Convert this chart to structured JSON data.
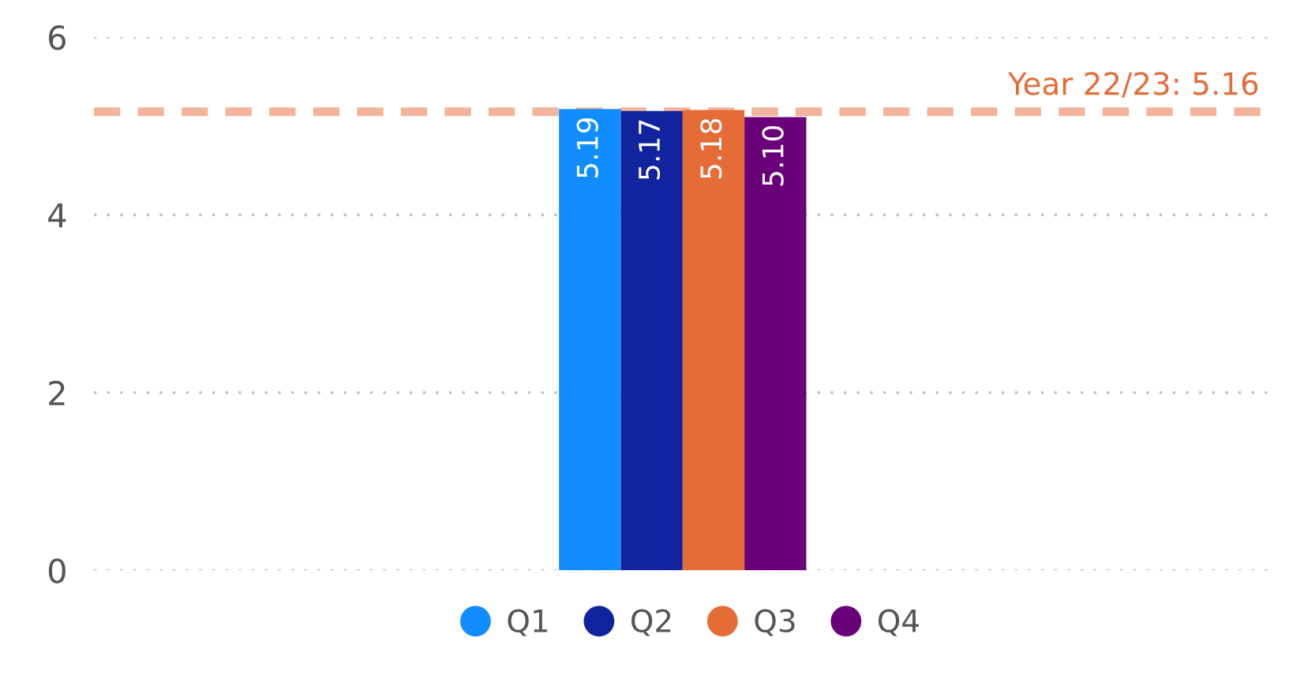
{
  "chart_data": {
    "type": "bar",
    "categories": [
      null
    ],
    "series": [
      {
        "name": "Q1",
        "color": "#118dff",
        "values": [
          5.19
        ],
        "value_labels": [
          "5.19"
        ]
      },
      {
        "name": "Q2",
        "color": "#12239e",
        "values": [
          5.17
        ],
        "value_labels": [
          "5.17"
        ]
      },
      {
        "name": "Q3",
        "color": "#e66c37",
        "values": [
          5.18
        ],
        "value_labels": [
          "5.18"
        ]
      },
      {
        "name": "Q4",
        "color": "#6b007b",
        "values": [
          5.1
        ],
        "value_labels": [
          "5.10"
        ]
      }
    ],
    "ylim": [
      0,
      6
    ],
    "yticks": [
      0,
      2,
      4,
      6
    ],
    "grid": "y",
    "legend": "bottom",
    "ref_lines": [
      {
        "axis": "y",
        "value": 5.16,
        "label": "Year 22/23: 5.16",
        "color": "#f2b49a",
        "line_style": "dashed"
      }
    ]
  }
}
